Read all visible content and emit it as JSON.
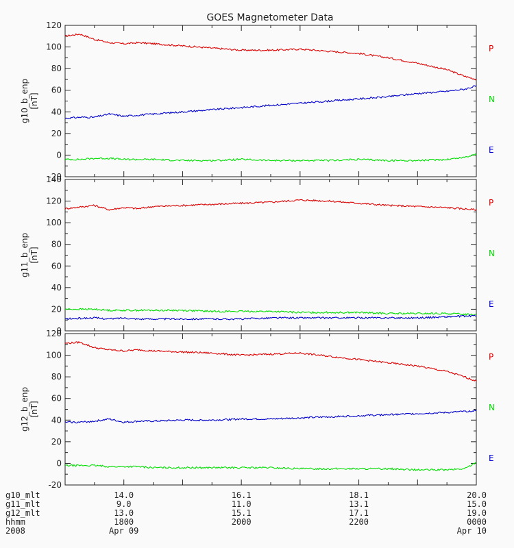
{
  "chart_data": {
    "type": "line",
    "title": "GOES Magnetometer Data",
    "x_range": [
      "2008-04-09 17:00",
      "2008-04-10 00:00"
    ],
    "colors": {
      "P": "#dd0000",
      "N": "#00dd00",
      "E": "#0000cc"
    },
    "panels": [
      {
        "ylabel": "g10_b_enp",
        "unit": "[nT]",
        "ylim": [
          -20,
          120
        ],
        "yticks": [
          "-20",
          "0",
          "20",
          "40",
          "60",
          "80",
          "100",
          "120"
        ],
        "legend": [
          "P",
          "N",
          "E"
        ],
        "x": [
          0,
          0.25,
          0.5,
          0.75,
          1.0,
          1.25,
          1.5,
          2.0,
          2.5,
          3.0,
          3.5,
          4.0,
          4.5,
          5.0,
          5.5,
          6.0,
          6.5,
          6.8,
          7.0
        ],
        "series": [
          {
            "name": "P",
            "values": [
              110,
              112,
              107,
              104,
              103,
              104,
              103,
              101,
              99,
              97,
              97,
              98,
              96,
              94,
              90,
              85,
              79,
              73,
              70
            ]
          },
          {
            "name": "N",
            "values": [
              -4,
              -4,
              -3,
              -3,
              -4,
              -4,
              -4,
              -5,
              -5,
              -4,
              -5,
              -5,
              -5,
              -4,
              -5,
              -5,
              -4,
              -2,
              1
            ]
          },
          {
            "name": "E",
            "values": [
              34,
              35,
              35,
              38,
              36,
              37,
              38,
              40,
              42,
              44,
              46,
              48,
              50,
              52,
              54,
              57,
              59,
              61,
              64
            ]
          }
        ]
      },
      {
        "ylabel": "g11_b_enp",
        "unit": "[nT]",
        "ylim": [
          0,
          140
        ],
        "yticks": [
          "0",
          "20",
          "40",
          "60",
          "80",
          "100",
          "120",
          "140"
        ],
        "legend": [
          "P",
          "N",
          "E"
        ],
        "x": [
          0,
          0.5,
          0.75,
          1.0,
          1.25,
          1.5,
          2.0,
          2.5,
          3.0,
          3.5,
          4.0,
          4.5,
          5.0,
          5.5,
          6.0,
          6.5,
          7.0
        ],
        "series": [
          {
            "name": "P",
            "values": [
              113,
              116,
              112,
              114,
              113,
              115,
              116,
              117,
              118,
              119,
              121,
              120,
              118,
              116,
              115,
              114,
              112
            ]
          },
          {
            "name": "N",
            "values": [
              20,
              20,
              19,
              19,
              19,
              19,
              19,
              18,
              18,
              18,
              17,
              17,
              17,
              16,
              16,
              16,
              15
            ]
          },
          {
            "name": "E",
            "values": [
              11,
              12,
              11,
              12,
              11,
              11,
              11,
              11,
              11,
              12,
              12,
              12,
              12,
              12,
              12,
              13,
              14
            ]
          }
        ]
      },
      {
        "ylabel": "g12_b_enp",
        "unit": "[nT]",
        "ylim": [
          -20,
          120
        ],
        "yticks": [
          "-20",
          "0",
          "20",
          "40",
          "60",
          "80",
          "100",
          "120"
        ],
        "legend": [
          "P",
          "N",
          "E"
        ],
        "x": [
          0,
          0.25,
          0.5,
          0.75,
          1.0,
          1.25,
          1.5,
          2.0,
          2.5,
          3.0,
          3.5,
          4.0,
          4.5,
          5.0,
          5.5,
          6.0,
          6.5,
          6.8,
          7.0
        ],
        "series": [
          {
            "name": "P",
            "values": [
              111,
              112,
              107,
              105,
              104,
              105,
              104,
              103,
              102,
              100,
              101,
              102,
              99,
              96,
              93,
              90,
              85,
              80,
              76
            ]
          },
          {
            "name": "N",
            "values": [
              -2,
              -2,
              -2,
              -3,
              -3,
              -3,
              -4,
              -4,
              -4,
              -4,
              -4,
              -5,
              -5,
              -5,
              -5,
              -6,
              -6,
              -5,
              1
            ]
          },
          {
            "name": "E",
            "values": [
              38,
              38,
              39,
              41,
              38,
              39,
              39,
              40,
              40,
              41,
              41,
              42,
              43,
              44,
              45,
              46,
              47,
              48,
              49
            ]
          }
        ]
      }
    ],
    "x_info": {
      "labels": [
        "g10_mlt",
        "g11_mlt",
        "g12_mlt",
        "hhmm",
        "2008"
      ],
      "ticks": [
        {
          "x": 1,
          "values": [
            "14.0",
            " 9.0",
            "13.0",
            "1800",
            "Apr 09"
          ]
        },
        {
          "x": 3,
          "values": [
            "16.1",
            "11.0",
            "15.1",
            "2000",
            ""
          ]
        },
        {
          "x": 5,
          "values": [
            "18.1",
            "13.1",
            "17.1",
            "2200",
            ""
          ]
        },
        {
          "x": 7,
          "values": [
            "20.0",
            "15.0",
            "19.0",
            "0000",
            "Apr 10"
          ]
        }
      ]
    }
  }
}
